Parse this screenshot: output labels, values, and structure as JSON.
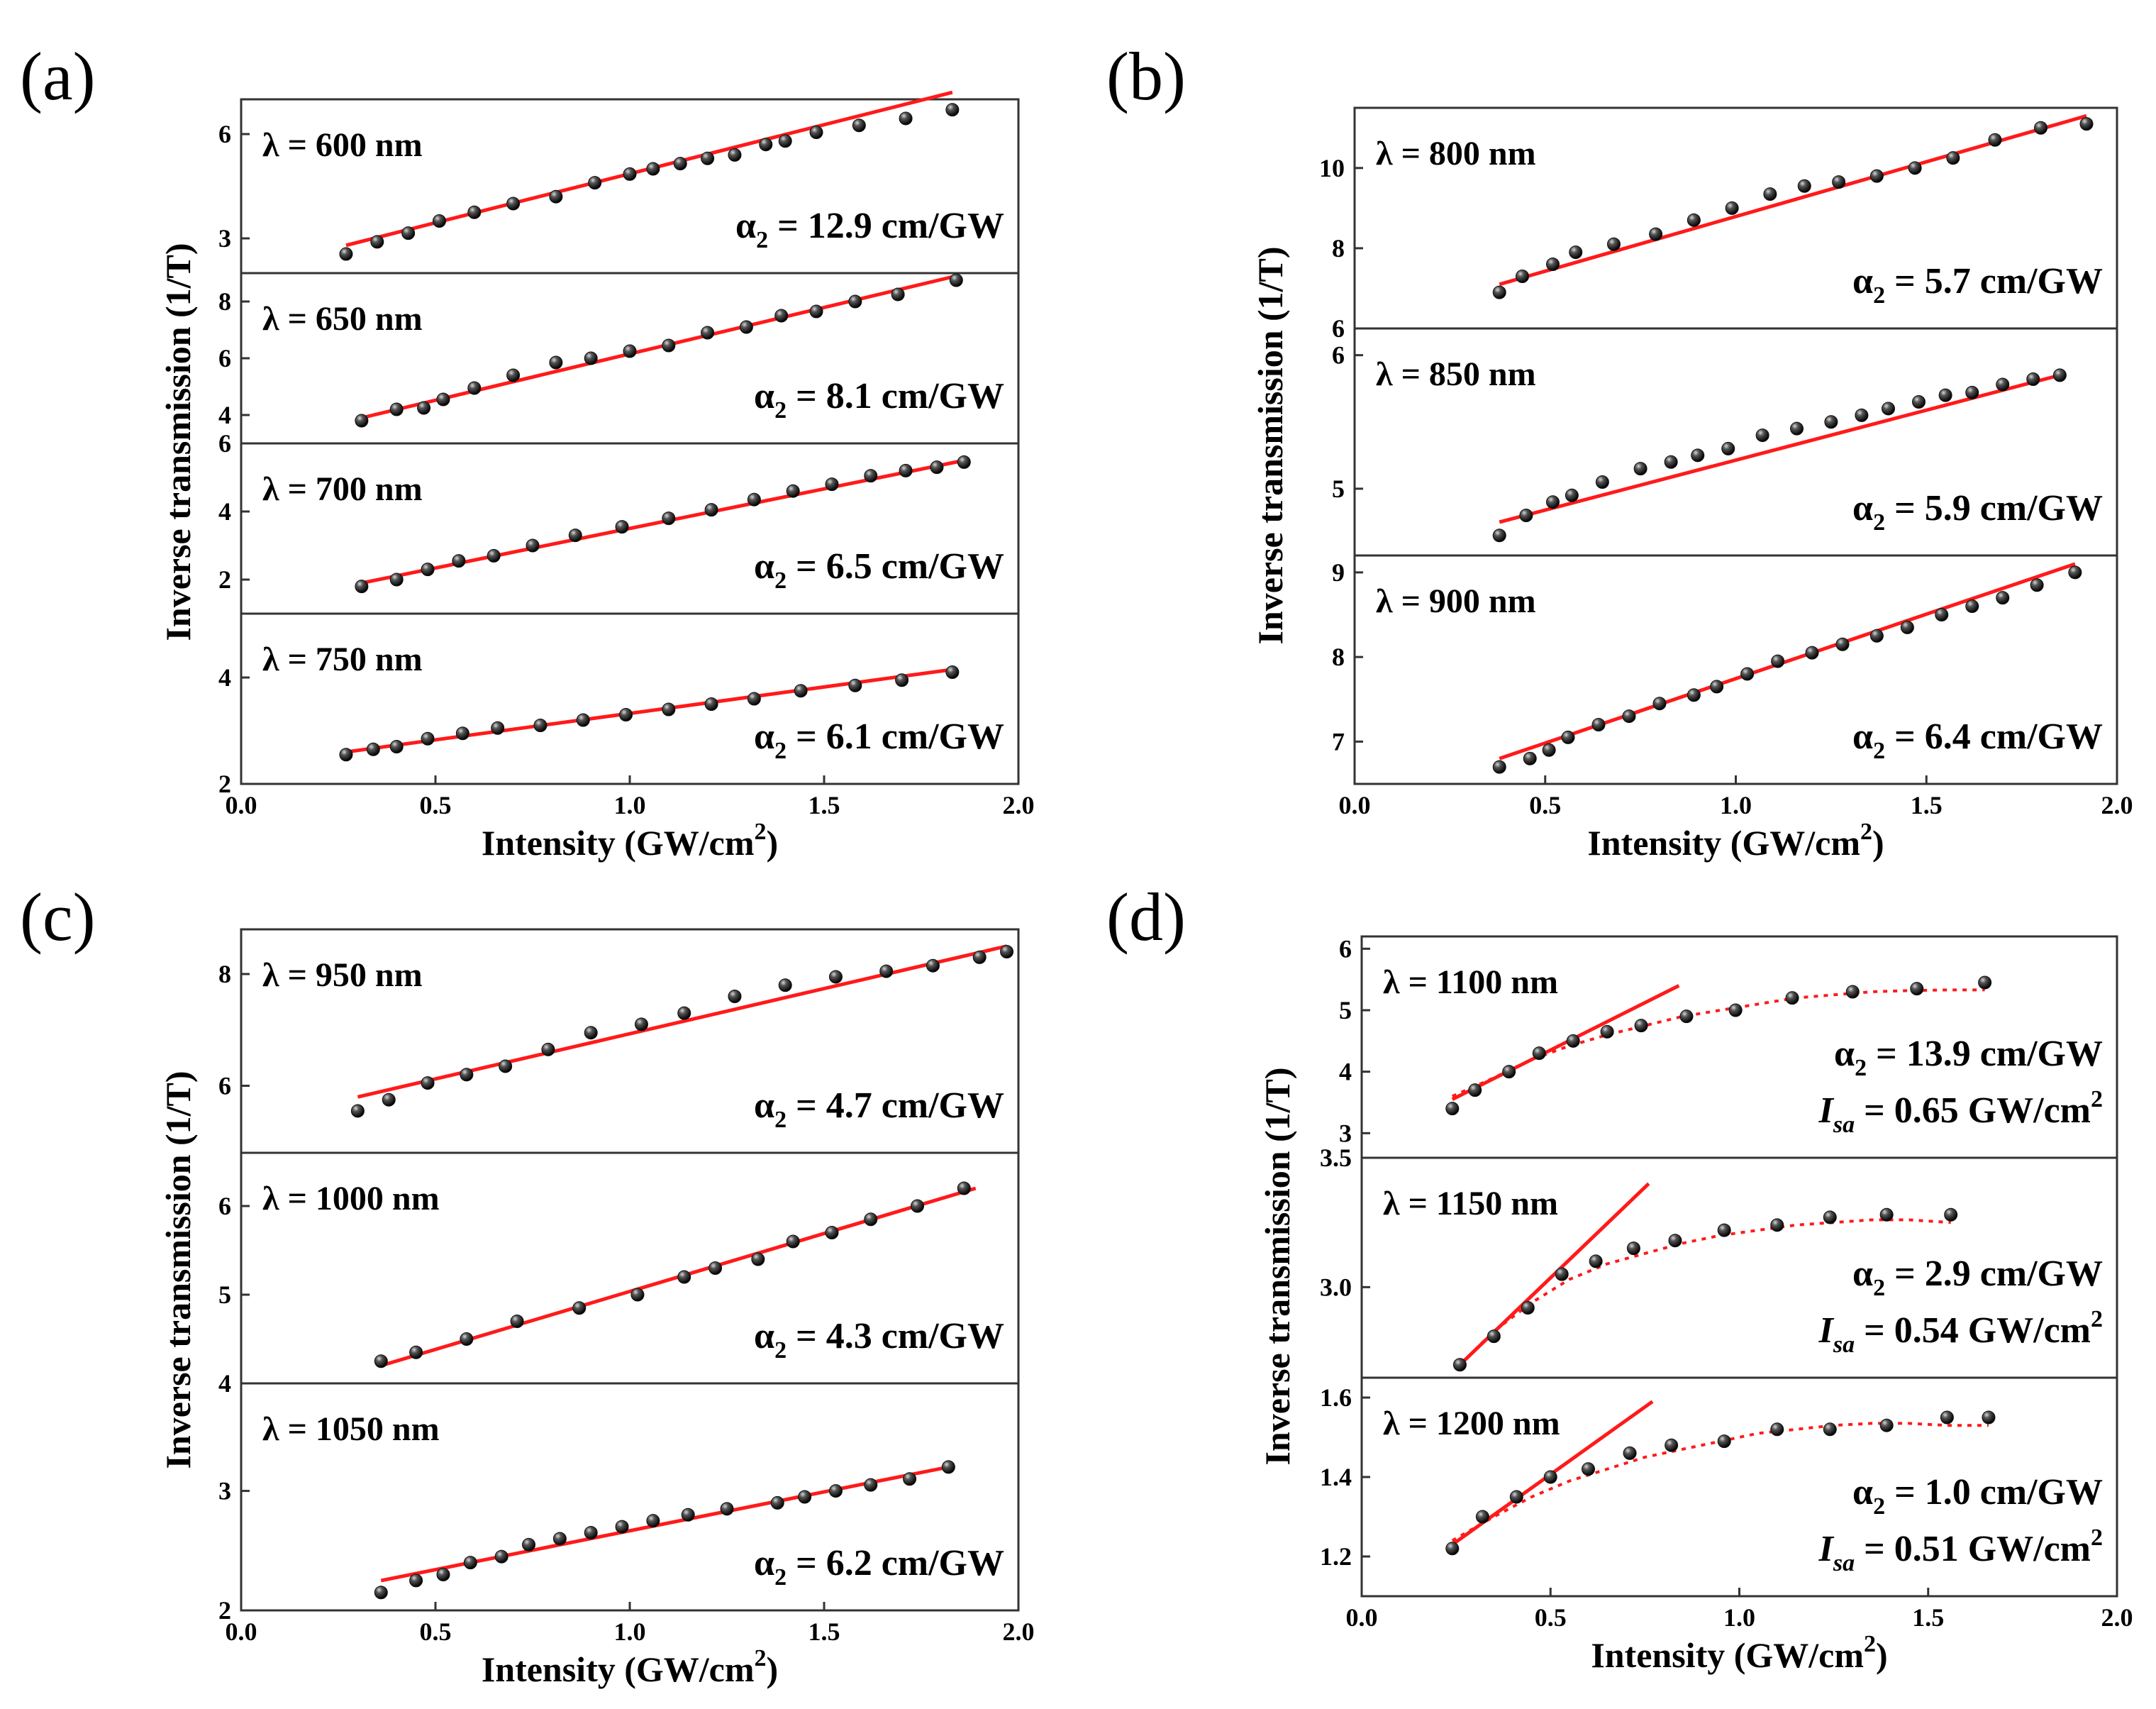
{
  "chart_data": [
    {
      "type": "scatter",
      "panel": "(a)",
      "xlabel": "Intensity (GW/cm",
      "xlabel_sup": "2",
      "xlabel_end": ")",
      "ylabel": "Inverse transmission (1/T)",
      "xlim": [
        0.0,
        2.0
      ],
      "xticks": [
        "0.0",
        "0.5",
        "1.0",
        "1.5",
        "2.0"
      ],
      "subplots": [
        {
          "wavelength": "λ = 600 nm",
          "alpha_prefix": "α",
          "alpha_sub": "2",
          "alpha_value": " = 12.9 cm/GW",
          "ylim": [
            2.0,
            7.0
          ],
          "yticks": [
            "3",
            "6"
          ],
          "x": [
            0.27,
            0.35,
            0.43,
            0.51,
            0.6,
            0.7,
            0.81,
            0.91,
            1.0,
            1.06,
            1.13,
            1.2,
            1.27,
            1.35,
            1.4,
            1.48,
            1.59,
            1.71,
            1.83
          ],
          "y": [
            2.55,
            2.9,
            3.15,
            3.5,
            3.75,
            4.0,
            4.2,
            4.6,
            4.85,
            5.0,
            5.15,
            5.3,
            5.4,
            5.7,
            5.8,
            6.05,
            6.25,
            6.45,
            6.7
          ],
          "fit": [
            [
              0.27,
              2.8
            ],
            [
              1.83,
              7.2
            ]
          ]
        },
        {
          "wavelength": "λ = 650 nm",
          "alpha_prefix": "α",
          "alpha_sub": "2",
          "alpha_value": " = 8.1 cm/GW",
          "ylim": [
            3.0,
            9.0
          ],
          "yticks": [
            "4",
            "6",
            "8"
          ],
          "x": [
            0.31,
            0.4,
            0.47,
            0.52,
            0.6,
            0.7,
            0.81,
            0.9,
            1.0,
            1.1,
            1.2,
            1.3,
            1.39,
            1.48,
            1.58,
            1.69,
            1.84
          ],
          "y": [
            3.8,
            4.2,
            4.25,
            4.55,
            4.95,
            5.4,
            5.85,
            6.0,
            6.25,
            6.45,
            6.9,
            7.1,
            7.5,
            7.65,
            8.0,
            8.25,
            8.75
          ],
          "fit": [
            [
              0.31,
              3.9
            ],
            [
              1.84,
              8.9
            ]
          ]
        },
        {
          "wavelength": "λ = 700 nm",
          "alpha_prefix": "α",
          "alpha_sub": "2",
          "alpha_value": " = 6.5 cm/GW",
          "ylim": [
            1.0,
            6.0
          ],
          "yticks": [
            "2",
            "4",
            "6"
          ],
          "x": [
            0.31,
            0.4,
            0.48,
            0.56,
            0.65,
            0.75,
            0.86,
            0.98,
            1.1,
            1.21,
            1.32,
            1.42,
            1.52,
            1.62,
            1.71,
            1.79,
            1.86
          ],
          "y": [
            1.8,
            2.0,
            2.3,
            2.55,
            2.7,
            3.0,
            3.3,
            3.55,
            3.8,
            4.05,
            4.35,
            4.6,
            4.8,
            5.05,
            5.2,
            5.3,
            5.45
          ],
          "fit": [
            [
              0.31,
              1.9
            ],
            [
              1.86,
              5.5
            ]
          ]
        },
        {
          "wavelength": "λ = 750 nm",
          "alpha_prefix": "α",
          "alpha_sub": "2",
          "alpha_value": " = 6.1 cm/GW",
          "ylim": [
            2.0,
            5.2
          ],
          "yticks": [
            "2",
            "4"
          ],
          "x": [
            0.27,
            0.34,
            0.4,
            0.48,
            0.57,
            0.66,
            0.77,
            0.88,
            0.99,
            1.1,
            1.21,
            1.32,
            1.44,
            1.58,
            1.7,
            1.83
          ],
          "y": [
            2.55,
            2.65,
            2.7,
            2.85,
            2.95,
            3.05,
            3.1,
            3.2,
            3.3,
            3.4,
            3.5,
            3.6,
            3.75,
            3.85,
            3.95,
            4.1
          ],
          "fit": [
            [
              0.27,
              2.6
            ],
            [
              1.83,
              4.15
            ]
          ]
        }
      ]
    },
    {
      "type": "scatter",
      "panel": "(b)",
      "xlabel": "Intensity (GW/cm",
      "xlabel_sup": "2",
      "xlabel_end": ")",
      "ylabel": "Inverse transmission (1/T)",
      "xlim": [
        0.0,
        2.0
      ],
      "xticks": [
        "0.0",
        "0.5",
        "1.0",
        "1.5",
        "2.0"
      ],
      "subplots": [
        {
          "wavelength": "λ = 800 nm",
          "alpha_prefix": "α",
          "alpha_sub": "2",
          "alpha_value": " = 5.7 cm/GW",
          "ylim": [
            6.0,
            11.5
          ],
          "yticks": [
            "6",
            "8",
            "10"
          ],
          "x": [
            0.38,
            0.44,
            0.52,
            0.58,
            0.68,
            0.79,
            0.89,
            0.99,
            1.09,
            1.18,
            1.27,
            1.37,
            1.47,
            1.57,
            1.68,
            1.8,
            1.92
          ],
          "y": [
            6.9,
            7.3,
            7.6,
            7.9,
            8.1,
            8.35,
            8.7,
            9.0,
            9.35,
            9.55,
            9.65,
            9.8,
            10.0,
            10.25,
            10.7,
            11.0,
            11.1
          ],
          "fit": [
            [
              0.38,
              7.1
            ],
            [
              1.92,
              11.3
            ]
          ]
        },
        {
          "wavelength": "λ = 850 nm",
          "alpha_prefix": "α",
          "alpha_sub": "2",
          "alpha_value": " = 5.9 cm/GW",
          "ylim": [
            4.5,
            6.2
          ],
          "yticks": [
            "5",
            "6"
          ],
          "x": [
            0.38,
            0.45,
            0.52,
            0.57,
            0.65,
            0.75,
            0.83,
            0.9,
            0.98,
            1.07,
            1.16,
            1.25,
            1.33,
            1.4,
            1.48,
            1.55,
            1.62,
            1.7,
            1.78,
            1.85
          ],
          "y": [
            4.65,
            4.8,
            4.9,
            4.95,
            5.05,
            5.15,
            5.2,
            5.25,
            5.3,
            5.4,
            5.45,
            5.5,
            5.55,
            5.6,
            5.65,
            5.7,
            5.72,
            5.78,
            5.82,
            5.85
          ],
          "fit": [
            [
              0.38,
              4.75
            ],
            [
              1.85,
              5.85
            ]
          ]
        },
        {
          "wavelength": "λ = 900 nm",
          "alpha_prefix": "α",
          "alpha_sub": "2",
          "alpha_value": " = 6.4 cm/GW",
          "ylim": [
            6.5,
            9.2
          ],
          "yticks": [
            "7",
            "8",
            "9"
          ],
          "x": [
            0.38,
            0.46,
            0.51,
            0.56,
            0.64,
            0.72,
            0.8,
            0.89,
            0.95,
            1.03,
            1.11,
            1.2,
            1.28,
            1.37,
            1.45,
            1.54,
            1.62,
            1.7,
            1.79,
            1.89
          ],
          "y": [
            6.7,
            6.8,
            6.9,
            7.05,
            7.2,
            7.3,
            7.45,
            7.55,
            7.65,
            7.8,
            7.95,
            8.05,
            8.15,
            8.25,
            8.35,
            8.5,
            8.6,
            8.7,
            8.85,
            9.0
          ],
          "fit": [
            [
              0.38,
              6.8
            ],
            [
              1.89,
              9.1
            ]
          ]
        }
      ]
    },
    {
      "type": "scatter",
      "panel": "(c)",
      "xlabel": "Intensity (GW/cm",
      "xlabel_sup": "2",
      "xlabel_end": ")",
      "ylabel": "Inverse transmission (1/T)",
      "xlim": [
        0.0,
        2.0
      ],
      "xticks": [
        "0.0",
        "0.5",
        "1.0",
        "1.5",
        "2.0"
      ],
      "subplots": [
        {
          "wavelength": "λ = 950 nm",
          "alpha_prefix": "α",
          "alpha_sub": "2",
          "alpha_value": " = 4.7 cm/GW",
          "ylim": [
            4.8,
            8.8
          ],
          "yticks": [
            "6",
            "8"
          ],
          "x": [
            0.3,
            0.38,
            0.48,
            0.58,
            0.68,
            0.79,
            0.9,
            1.03,
            1.14,
            1.27,
            1.4,
            1.53,
            1.66,
            1.78,
            1.9,
            1.97
          ],
          "y": [
            5.55,
            5.75,
            6.05,
            6.2,
            6.35,
            6.65,
            6.95,
            7.1,
            7.3,
            7.6,
            7.8,
            7.95,
            8.05,
            8.15,
            8.3,
            8.4
          ],
          "fit": [
            [
              0.3,
              5.8
            ],
            [
              1.97,
              8.5
            ]
          ]
        },
        {
          "wavelength": "λ = 1000 nm",
          "alpha_prefix": "α",
          "alpha_sub": "2",
          "alpha_value": " = 4.3 cm/GW",
          "ylim": [
            4.0,
            6.6
          ],
          "yticks": [
            "4",
            "5",
            "6"
          ],
          "x": [
            0.36,
            0.45,
            0.58,
            0.71,
            0.87,
            1.02,
            1.14,
            1.22,
            1.33,
            1.42,
            1.52,
            1.62,
            1.74,
            1.86
          ],
          "y": [
            4.25,
            4.35,
            4.5,
            4.7,
            4.85,
            5.0,
            5.2,
            5.3,
            5.4,
            5.6,
            5.7,
            5.85,
            6.0,
            6.2
          ],
          "fit": [
            [
              0.36,
              4.2
            ],
            [
              1.89,
              6.2
            ]
          ]
        },
        {
          "wavelength": "λ = 1050 nm",
          "alpha_prefix": "α",
          "alpha_sub": "2",
          "alpha_value": " = 6.2 cm/GW",
          "ylim": [
            2.0,
            3.9
          ],
          "yticks": [
            "2",
            "3"
          ],
          "x": [
            0.36,
            0.45,
            0.52,
            0.59,
            0.67,
            0.74,
            0.82,
            0.9,
            0.98,
            1.06,
            1.15,
            1.25,
            1.38,
            1.45,
            1.53,
            1.62,
            1.72,
            1.82
          ],
          "y": [
            2.15,
            2.25,
            2.3,
            2.4,
            2.45,
            2.55,
            2.6,
            2.65,
            2.7,
            2.75,
            2.8,
            2.85,
            2.9,
            2.95,
            3.0,
            3.05,
            3.1,
            3.2
          ],
          "fit": [
            [
              0.36,
              2.25
            ],
            [
              1.82,
              3.2
            ]
          ]
        }
      ]
    },
    {
      "type": "scatter",
      "panel": "(d)",
      "xlabel": "Intensity (GW/cm",
      "xlabel_sup": "2",
      "xlabel_end": ")",
      "ylabel": "Inverse transmission (1/T)",
      "xlim": [
        0.0,
        2.0
      ],
      "xticks": [
        "0.0",
        "0.5",
        "1.0",
        "1.5",
        "2.0"
      ],
      "subplots": [
        {
          "wavelength": "λ = 1100 nm",
          "alpha_prefix": "α",
          "alpha_sub": "2",
          "alpha_value": " = 13.9 cm/GW",
          "isa_prefix": "I",
          "isa_sub": "sa",
          "isa_value": " = 0.65 GW/cm",
          "isa_sup": "2",
          "ylim": [
            2.6,
            6.2
          ],
          "yticks": [
            "3",
            "4",
            "5",
            "6"
          ],
          "x": [
            0.24,
            0.3,
            0.39,
            0.47,
            0.56,
            0.65,
            0.74,
            0.86,
            0.99,
            1.14,
            1.3,
            1.47,
            1.65
          ],
          "y": [
            3.4,
            3.7,
            4.0,
            4.3,
            4.5,
            4.65,
            4.75,
            4.9,
            5.0,
            5.2,
            5.3,
            5.35,
            5.45
          ],
          "fit": [
            [
              0.24,
              3.55
            ],
            [
              0.84,
              5.4
            ]
          ],
          "sat_fit_x": [
            0.24,
            0.35,
            0.45,
            0.55,
            0.65,
            0.75,
            0.85,
            0.95,
            1.05,
            1.15,
            1.25,
            1.35,
            1.45,
            1.55,
            1.65
          ],
          "sat_fit_y": [
            3.6,
            3.9,
            4.2,
            4.42,
            4.6,
            4.75,
            4.9,
            5.0,
            5.1,
            5.2,
            5.25,
            5.3,
            5.32,
            5.33,
            5.33
          ]
        },
        {
          "wavelength": "λ = 1150 nm",
          "alpha_prefix": "α",
          "alpha_sub": "2",
          "alpha_value": " = 2.9 cm/GW",
          "isa_prefix": "I",
          "isa_sub": "sa",
          "isa_value": " = 0.54 GW/cm",
          "isa_sup": "2",
          "ylim": [
            2.65,
            3.5
          ],
          "yticks": [
            "3.0",
            "3.5"
          ],
          "x": [
            0.26,
            0.35,
            0.44,
            0.53,
            0.62,
            0.72,
            0.83,
            0.96,
            1.1,
            1.24,
            1.39,
            1.56
          ],
          "y": [
            2.7,
            2.81,
            2.92,
            3.05,
            3.1,
            3.15,
            3.18,
            3.22,
            3.24,
            3.27,
            3.28,
            3.28
          ],
          "fit": [
            [
              0.26,
              2.7
            ],
            [
              0.76,
              3.4
            ]
          ],
          "sat_fit_x": [
            0.26,
            0.35,
            0.45,
            0.55,
            0.65,
            0.75,
            0.85,
            0.95,
            1.05,
            1.15,
            1.25,
            1.35,
            1.45,
            1.56
          ],
          "sat_fit_y": [
            2.7,
            2.83,
            2.94,
            3.03,
            3.09,
            3.13,
            3.17,
            3.2,
            3.22,
            3.24,
            3.25,
            3.26,
            3.26,
            3.25
          ]
        },
        {
          "wavelength": "λ = 1200 nm",
          "alpha_prefix": "α",
          "alpha_sub": "2",
          "alpha_value": " = 1.0 cm/GW",
          "isa_prefix": "I",
          "isa_sub": "sa",
          "isa_value": " = 0.51 GW/cm",
          "isa_sup": "2",
          "ylim": [
            1.1,
            1.65
          ],
          "yticks": [
            "1.2",
            "1.4",
            "1.6"
          ],
          "x": [
            0.24,
            0.32,
            0.41,
            0.5,
            0.6,
            0.71,
            0.82,
            0.96,
            1.1,
            1.24,
            1.39,
            1.55,
            1.66
          ],
          "y": [
            1.22,
            1.3,
            1.35,
            1.4,
            1.42,
            1.46,
            1.48,
            1.49,
            1.52,
            1.52,
            1.53,
            1.55,
            1.55
          ],
          "fit": [
            [
              0.24,
              1.23
            ],
            [
              0.77,
              1.59
            ]
          ],
          "sat_fit_x": [
            0.24,
            0.35,
            0.45,
            0.55,
            0.65,
            0.75,
            0.85,
            0.95,
            1.05,
            1.15,
            1.25,
            1.35,
            1.45,
            1.55,
            1.66
          ],
          "sat_fit_y": [
            1.24,
            1.3,
            1.35,
            1.39,
            1.42,
            1.45,
            1.47,
            1.49,
            1.51,
            1.52,
            1.53,
            1.535,
            1.535,
            1.53,
            1.53
          ]
        }
      ]
    }
  ],
  "colors": {
    "fit_line": "#ff1a1a",
    "marker": "#111111",
    "axis": "#333333"
  }
}
